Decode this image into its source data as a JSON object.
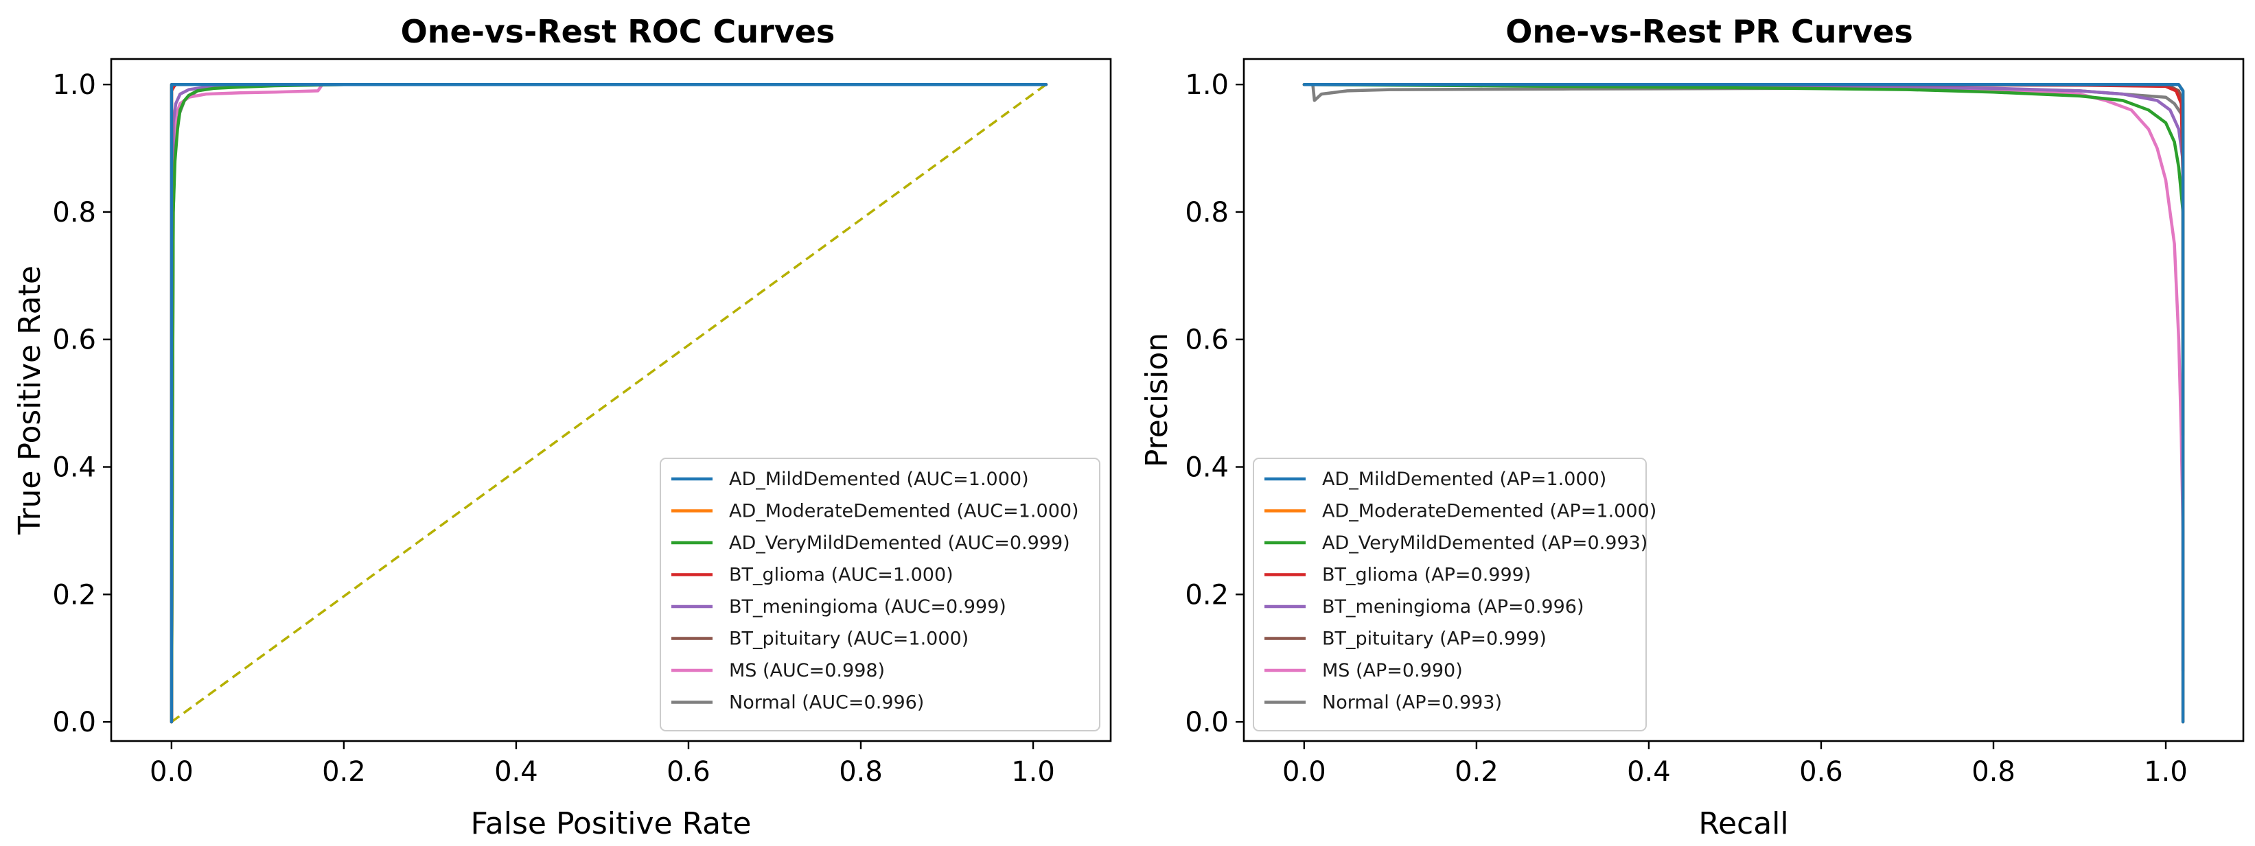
{
  "chart_data": [
    {
      "type": "line",
      "title": "One-vs-Rest ROC Curves",
      "xlabel": "False Positive Rate",
      "ylabel": "True Positive Rate",
      "xlim": [
        -0.07,
        1.09
      ],
      "ylim": [
        -0.03,
        1.04
      ],
      "xticks": [
        "0.0",
        "0.2",
        "0.4",
        "0.6",
        "0.8",
        "1.0"
      ],
      "yticks": [
        "0.0",
        "0.2",
        "0.4",
        "0.6",
        "0.8",
        "1.0"
      ],
      "grid": false,
      "legend_position": "lower right",
      "series": [
        {
          "name": "AD_MildDemented (AUC=1.000)",
          "color": "#1f77b4",
          "x": [
            0,
            0,
            1.015
          ],
          "y": [
            0,
            1.0,
            1.0
          ]
        },
        {
          "name": "AD_ModerateDemented (AUC=1.000)",
          "color": "#ff7f0e",
          "x": [
            0,
            0,
            1.015
          ],
          "y": [
            0,
            1.0,
            1.0
          ]
        },
        {
          "name": "AD_VeryMildDemented (AUC=0.999)",
          "color": "#2ca02c",
          "x": [
            0,
            0.002,
            0.004,
            0.007,
            0.01,
            0.015,
            0.02,
            0.03,
            0.05,
            0.08,
            0.12,
            0.2,
            1.015
          ],
          "y": [
            0,
            0.8,
            0.88,
            0.93,
            0.96,
            0.975,
            0.983,
            0.99,
            0.994,
            0.996,
            0.998,
            1.0,
            1.0
          ]
        },
        {
          "name": "BT_glioma (AUC=1.000)",
          "color": "#d62728",
          "x": [
            0,
            0,
            0.003,
            0.005,
            1.015
          ],
          "y": [
            0,
            0.99,
            0.997,
            1.0,
            1.0
          ]
        },
        {
          "name": "BT_meningioma (AUC=0.999)",
          "color": "#9467bd",
          "x": [
            0,
            0.002,
            0.005,
            0.01,
            0.02,
            0.04,
            0.08,
            1.015
          ],
          "y": [
            0,
            0.94,
            0.97,
            0.985,
            0.992,
            0.996,
            1.0,
            1.0
          ]
        },
        {
          "name": "BT_pituitary (AUC=1.000)",
          "color": "#8c564b",
          "x": [
            0,
            0,
            0.004,
            1.015
          ],
          "y": [
            0,
            0.995,
            1.0,
            1.0
          ]
        },
        {
          "name": "MS (AUC=0.998)",
          "color": "#e377c2",
          "x": [
            0,
            0.002,
            0.005,
            0.01,
            0.02,
            0.04,
            0.08,
            0.12,
            0.17,
            0.175,
            0.25,
            1.015
          ],
          "y": [
            0,
            0.9,
            0.95,
            0.97,
            0.98,
            0.985,
            0.987,
            0.988,
            0.99,
            1.0,
            1.0,
            1.0
          ]
        },
        {
          "name": "Normal (AUC=0.996)",
          "color": "#7f7f7f",
          "x": [
            0,
            0.001,
            0.002,
            0.004,
            0.008,
            0.015,
            0.03,
            0.05,
            0.1,
            0.2,
            1.015
          ],
          "y": [
            0,
            0.4,
            0.8,
            0.9,
            0.95,
            0.975,
            0.99,
            0.995,
            0.998,
            1.0,
            1.0
          ]
        }
      ],
      "reference_line": {
        "color": "#b5b000",
        "x": [
          0,
          1.015
        ],
        "y": [
          0,
          1.0
        ]
      }
    },
    {
      "type": "line",
      "title": "One-vs-Rest PR Curves",
      "xlabel": "Recall",
      "ylabel": "Precision",
      "xlim": [
        -0.07,
        1.09
      ],
      "ylim": [
        -0.03,
        1.04
      ],
      "xticks": [
        "0.0",
        "0.2",
        "0.4",
        "0.6",
        "0.8",
        "1.0"
      ],
      "yticks": [
        "0.0",
        "0.2",
        "0.4",
        "0.6",
        "0.8",
        "1.0"
      ],
      "grid": false,
      "legend_position": "lower left",
      "series": [
        {
          "name": "AD_MildDemented (AP=1.000)",
          "color": "#1f77b4",
          "x": [
            0,
            1.015,
            1.02,
            1.02
          ],
          "y": [
            1.0,
            1.0,
            0.99,
            0.0
          ]
        },
        {
          "name": "AD_ModerateDemented (AP=1.000)",
          "color": "#ff7f0e",
          "x": [
            0,
            1.015,
            1.02,
            1.02
          ],
          "y": [
            1.0,
            1.0,
            0.99,
            0.0
          ]
        },
        {
          "name": "AD_VeryMildDemented (AP=0.993)",
          "color": "#2ca02c",
          "x": [
            0,
            0.2,
            0.5,
            0.7,
            0.8,
            0.9,
            0.95,
            0.98,
            1.0,
            1.01,
            1.015,
            1.02,
            1.02
          ],
          "y": [
            1.0,
            0.998,
            0.995,
            0.992,
            0.988,
            0.982,
            0.975,
            0.96,
            0.94,
            0.91,
            0.87,
            0.8,
            0.45
          ]
        },
        {
          "name": "BT_glioma (AP=0.999)",
          "color": "#d62728",
          "x": [
            0,
            0.5,
            0.9,
            1.0,
            1.012,
            1.018,
            1.02
          ],
          "y": [
            1.0,
            1.0,
            0.999,
            0.997,
            0.99,
            0.97,
            0.85
          ]
        },
        {
          "name": "BT_meningioma (AP=0.996)",
          "color": "#9467bd",
          "x": [
            0,
            0.3,
            0.6,
            0.8,
            0.9,
            0.95,
            0.99,
            1.005,
            1.015,
            1.02,
            1.02
          ],
          "y": [
            1.0,
            0.999,
            0.997,
            0.994,
            0.99,
            0.985,
            0.975,
            0.96,
            0.93,
            0.88,
            0.6
          ]
        },
        {
          "name": "BT_pituitary (AP=0.999)",
          "color": "#8c564b",
          "x": [
            0,
            0.6,
            0.95,
            1.005,
            1.015,
            1.02,
            1.02
          ],
          "y": [
            1.0,
            1.0,
            0.999,
            0.997,
            0.99,
            0.97,
            0.9
          ]
        },
        {
          "name": "MS (AP=0.990)",
          "color": "#e377c2",
          "x": [
            0,
            0.3,
            0.6,
            0.8,
            0.9,
            0.93,
            0.96,
            0.98,
            0.99,
            1.0,
            1.01,
            1.015,
            1.018,
            1.02,
            1.02
          ],
          "y": [
            1.0,
            0.998,
            0.996,
            0.99,
            0.985,
            0.975,
            0.96,
            0.93,
            0.9,
            0.85,
            0.75,
            0.6,
            0.45,
            0.3,
            0.08
          ]
        },
        {
          "name": "Normal (AP=0.993)",
          "color": "#7f7f7f",
          "x": [
            0.01,
            0.012,
            0.02,
            0.05,
            0.1,
            0.3,
            0.6,
            0.8,
            0.9,
            0.95,
            1.0,
            1.01,
            1.02,
            1.02
          ],
          "y": [
            1.0,
            0.975,
            0.985,
            0.99,
            0.992,
            0.993,
            0.994,
            0.993,
            0.99,
            0.985,
            0.98,
            0.97,
            0.95,
            0.35
          ]
        }
      ]
    }
  ]
}
